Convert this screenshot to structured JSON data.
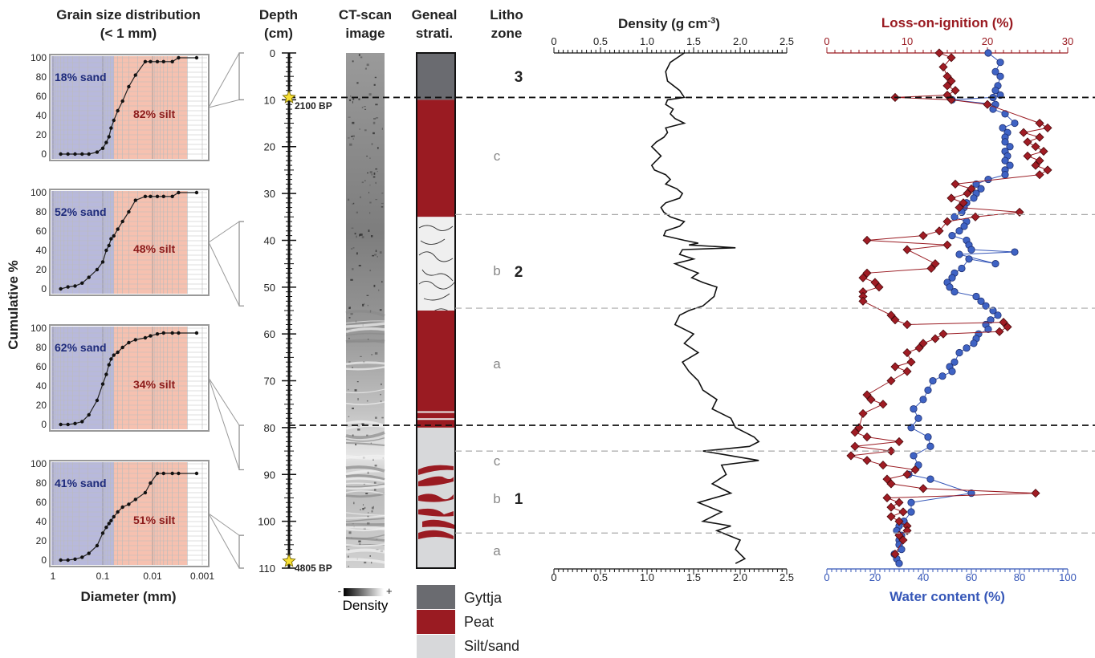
{
  "colors": {
    "sand": "#b8b9dc",
    "silt": "#f6c1b0",
    "gyttja": "#6a6b70",
    "peat": "#9a1b22",
    "siltsand": "#d7d8da",
    "loi": "#9a1b22",
    "water": "#3657b8",
    "density_line": "#111111"
  },
  "headers": {
    "grain": [
      "Grain size distribution",
      "(< 1 mm)"
    ],
    "depth": [
      "Depth",
      "(cm)"
    ],
    "ct": [
      "CT-scan",
      "image"
    ],
    "geneal": [
      "Geneal",
      "strati."
    ],
    "litho": [
      "Litho",
      "zone"
    ]
  },
  "grain_axis": {
    "ylabel": "Cumulative %",
    "xlabel": "Diameter (mm)",
    "yticks": [
      "0",
      "20",
      "40",
      "60",
      "80",
      "100"
    ],
    "xticks": [
      "1",
      "0.1",
      "0.01",
      "0.001"
    ]
  },
  "depth_axis": {
    "ticks": [
      "0",
      "10",
      "20",
      "30",
      "40",
      "50",
      "60",
      "70",
      "80",
      "90",
      "100",
      "110"
    ],
    "ages": [
      "2100 BP",
      "4805 BP"
    ]
  },
  "ct_legend": {
    "minus": "-",
    "plus": "+",
    "label": "Density"
  },
  "strat_legend": [
    "Gyttja",
    "Peat",
    "Silt/sand"
  ],
  "litho": {
    "subzones": [
      "c",
      "b",
      "a",
      "c",
      "b",
      "a"
    ],
    "zones": [
      "3",
      "2",
      "1"
    ]
  },
  "density_axis": {
    "title": "Density (g cm",
    "title_sup": "-3",
    "title_end": ")",
    "ticks": [
      "0",
      "0.5",
      "1.0",
      "1.5",
      "2.0",
      "2.5"
    ]
  },
  "loi_axis": {
    "title": "Loss-on-ignition (%)",
    "ticks": [
      "0",
      "10",
      "20",
      "30"
    ]
  },
  "water_axis": {
    "title": "Water content (%)",
    "ticks": [
      "0",
      "20",
      "40",
      "60",
      "80",
      "100"
    ]
  },
  "chart_data": [
    {
      "type": "line",
      "title": "Grain size distribution (< 1 mm)",
      "xlabel": "Diameter (mm)",
      "ylabel": "Cumulative %",
      "x_scale": "log-reversed",
      "xlim": [
        1,
        0.001
      ],
      "ylim": [
        0,
        100
      ],
      "series": [
        {
          "name": "18% sand / 82% silt",
          "sand": "18% sand",
          "silt": "82% silt",
          "x": [
            0.7,
            0.5,
            0.36,
            0.26,
            0.19,
            0.13,
            0.1,
            0.085,
            0.075,
            0.068,
            0.06,
            0.05,
            0.04,
            0.03,
            0.022,
            0.014,
            0.011,
            0.008,
            0.006,
            0.004,
            0.003,
            0.0013
          ],
          "y": [
            0,
            0,
            0,
            0,
            0,
            2,
            6,
            12,
            18,
            27,
            35,
            45,
            55,
            70,
            82,
            96,
            96,
            96,
            96,
            96,
            100,
            100
          ]
        },
        {
          "name": "52% sand / 48% silt",
          "sand": "52% sand",
          "silt": "48% silt",
          "x": [
            0.7,
            0.5,
            0.36,
            0.26,
            0.19,
            0.13,
            0.1,
            0.085,
            0.075,
            0.068,
            0.06,
            0.05,
            0.04,
            0.03,
            0.022,
            0.014,
            0.011,
            0.008,
            0.006,
            0.004,
            0.003,
            0.0013
          ],
          "y": [
            0,
            2,
            3,
            6,
            12,
            20,
            28,
            40,
            45,
            52,
            55,
            62,
            70,
            80,
            92,
            96,
            96,
            96,
            96,
            96,
            100,
            100
          ]
        },
        {
          "name": "62% sand / 34% silt",
          "sand": "62% sand",
          "silt": "34% silt",
          "x": [
            0.7,
            0.5,
            0.36,
            0.26,
            0.19,
            0.13,
            0.1,
            0.085,
            0.075,
            0.068,
            0.06,
            0.05,
            0.04,
            0.03,
            0.022,
            0.014,
            0.011,
            0.008,
            0.006,
            0.004,
            0.003,
            0.0013
          ],
          "y": [
            0,
            0,
            1,
            3,
            10,
            25,
            42,
            52,
            62,
            68,
            72,
            75,
            80,
            85,
            88,
            90,
            92,
            94,
            95,
            95,
            95,
            95
          ]
        },
        {
          "name": "41% sand / 51% silt",
          "sand": "41% sand",
          "silt": "51% silt",
          "x": [
            0.7,
            0.5,
            0.36,
            0.26,
            0.19,
            0.13,
            0.1,
            0.085,
            0.075,
            0.068,
            0.06,
            0.05,
            0.04,
            0.03,
            0.022,
            0.014,
            0.011,
            0.008,
            0.006,
            0.004,
            0.003,
            0.0013
          ],
          "y": [
            0,
            0,
            1,
            3,
            7,
            15,
            28,
            34,
            38,
            41,
            45,
            50,
            55,
            58,
            63,
            70,
            80,
            90,
            90,
            90,
            90,
            90
          ]
        }
      ]
    },
    {
      "type": "line",
      "title": "Density (g cm-3)",
      "xlabel": "Density (g cm-3)",
      "ylabel": "Depth (cm)",
      "xlim": [
        0,
        2.5
      ],
      "ylim": [
        110,
        0
      ],
      "x": [
        1.4,
        1.25,
        1.2,
        1.22,
        1.35,
        1.4,
        1.22,
        1.2,
        1.28,
        1.25,
        1.3,
        1.4,
        1.2,
        1.22,
        1.18,
        1.1,
        1.05,
        1.1,
        1.15,
        1.1,
        1.05,
        1.08,
        1.2,
        1.25,
        1.2,
        1.32,
        1.38,
        1.35,
        1.2,
        1.15,
        1.18,
        1.25,
        1.4,
        1.35,
        1.2,
        1.18,
        1.4,
        1.55,
        1.45,
        1.7,
        1.95,
        1.38,
        1.35,
        1.5,
        1.3,
        1.42,
        1.55,
        1.48,
        1.6,
        1.75,
        1.72,
        1.6,
        1.45,
        1.35,
        1.3,
        1.5,
        1.4,
        1.55,
        1.38,
        1.45,
        1.55,
        1.6,
        1.75,
        1.7,
        1.9,
        1.95,
        2.05,
        2.15,
        2.2,
        2.1,
        1.6,
        1.9,
        2.2,
        1.8,
        1.85,
        1.7,
        1.9,
        1.55,
        1.8,
        1.6,
        1.9,
        1.75,
        2.0,
        1.95,
        2.05,
        1.95
      ],
      "y": [
        0,
        2,
        4,
        6,
        8,
        9.5,
        10,
        11,
        12,
        13,
        14,
        15,
        16,
        17,
        18,
        19,
        20,
        21,
        22,
        23,
        24,
        25,
        26,
        27,
        28,
        29,
        30,
        31,
        32,
        33,
        34,
        35,
        36,
        37,
        38,
        39,
        40,
        40.6,
        41,
        41.3,
        41.6,
        42,
        43,
        44,
        45,
        46,
        47,
        48,
        49,
        50,
        52,
        54,
        55,
        56,
        58,
        60,
        62,
        64,
        66,
        68,
        70,
        72,
        74,
        76,
        78,
        80,
        81,
        82,
        83,
        84,
        85,
        86,
        87,
        88,
        90,
        92,
        94,
        96,
        98,
        100,
        101,
        102,
        104,
        106,
        108,
        109
      ]
    },
    {
      "type": "scatter",
      "title": "Loss-on-ignition (%)",
      "xlabel": "Loss-on-ignition (%)",
      "xlim": [
        0,
        30
      ],
      "ylim": [
        110,
        0
      ],
      "x": [
        14,
        15.5,
        14.5,
        15,
        15.5,
        15,
        16,
        15,
        8.5,
        15.5,
        20,
        26.5,
        27.5,
        24.5,
        26.5,
        25,
        26,
        27,
        25,
        26.5,
        26,
        27.5,
        26.5,
        16,
        18,
        17.5,
        15.5,
        17,
        16.5,
        24,
        18.5,
        15,
        14,
        12,
        5,
        15,
        10,
        13.5,
        13,
        5,
        4.5,
        6,
        6.5,
        4.5,
        4.5,
        4.5,
        8,
        8.5,
        10,
        22,
        22.5,
        21.5,
        14.5,
        13.5,
        12,
        11.5,
        10,
        10.5,
        8.5,
        10,
        8,
        5,
        5.5,
        7,
        4.5,
        4,
        3.5,
        5,
        9,
        3.5,
        8,
        3,
        5,
        7,
        11,
        10,
        7.5,
        8,
        12,
        26,
        7.5,
        9,
        8,
        9.5,
        8,
        9,
        10,
        10,
        9,
        9.5,
        8.5
      ],
      "y": [
        0,
        1,
        3,
        5,
        6,
        7,
        8,
        9,
        9.5,
        10,
        11,
        15,
        16,
        17,
        18,
        19,
        20,
        21,
        22,
        23,
        24,
        25,
        26,
        28,
        29,
        30,
        31,
        32,
        33,
        34,
        35,
        36,
        38,
        39,
        40,
        41,
        42,
        45,
        46,
        47,
        48,
        49,
        50,
        51,
        52,
        53,
        56,
        57,
        58,
        57.5,
        58.5,
        59.5,
        60,
        61,
        62,
        63,
        64,
        66,
        67,
        68,
        70,
        73,
        74,
        75,
        77,
        80,
        81,
        82,
        83,
        84,
        85,
        86,
        87,
        88,
        89,
        90,
        91,
        92,
        93,
        94,
        95,
        96,
        97,
        98,
        99,
        100,
        101,
        102,
        103,
        104,
        107
      ]
    },
    {
      "type": "scatter",
      "title": "Water content (%)",
      "xlabel": "Water content (%)",
      "xlim": [
        0,
        100
      ],
      "ylim": [
        110,
        0
      ],
      "x": [
        67,
        72,
        70,
        72,
        71,
        70,
        72,
        69,
        52,
        70,
        69,
        74,
        78,
        73,
        75,
        74,
        74,
        76,
        74,
        75,
        74,
        76,
        74,
        74,
        67,
        62,
        64,
        62,
        61,
        58,
        57,
        56,
        53,
        58,
        57,
        55,
        52,
        58,
        59,
        60,
        78,
        55,
        70,
        59,
        56,
        53,
        52,
        50,
        51,
        53,
        62,
        64,
        66,
        69,
        71,
        68,
        66,
        67,
        63,
        62,
        61,
        58,
        55,
        53,
        51,
        52,
        48,
        44,
        42,
        40,
        36,
        38,
        35,
        42,
        43,
        36,
        38,
        34,
        43,
        60,
        35,
        35,
        32,
        30,
        29,
        31,
        30,
        30,
        31,
        28,
        29,
        30
      ],
      "y": [
        0,
        2,
        4,
        5,
        7,
        8,
        9,
        9.5,
        10,
        11,
        12,
        13,
        15,
        16,
        17,
        18,
        19,
        20,
        21,
        22,
        23,
        24,
        25,
        26,
        27,
        28,
        29,
        30,
        31,
        32,
        33,
        34,
        35,
        36,
        37,
        38,
        39,
        40,
        41,
        42,
        42.5,
        43,
        45,
        44,
        46,
        47,
        48,
        49,
        50,
        51,
        52,
        53,
        54,
        55,
        56,
        57,
        58,
        59,
        60,
        61,
        62,
        63,
        64,
        66,
        67,
        68,
        69,
        70,
        72,
        74,
        76,
        78,
        80,
        82,
        84,
        86,
        88,
        90,
        91,
        94,
        96,
        98,
        100,
        101,
        102,
        103,
        104,
        105,
        106,
        107,
        108,
        109
      ]
    }
  ]
}
